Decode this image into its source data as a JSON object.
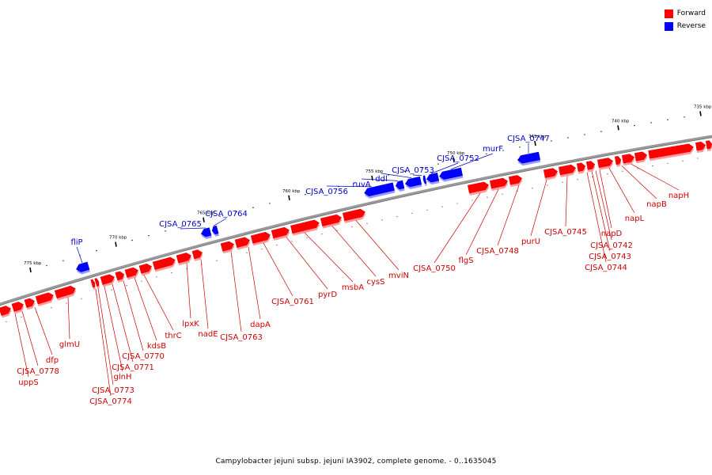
{
  "legend": {
    "forward": {
      "label": "Forward",
      "color": "#ff0000"
    },
    "reverse": {
      "label": "Reverse",
      "color": "#0000ff"
    }
  },
  "caption": "Campylobacter jejuni subsp. jejuni IA3902, complete genome. - 0..1635045",
  "colors": {
    "forward": "#ff0000",
    "reverse": "#0000ff",
    "forward_label": "#cc0000",
    "reverse_label": "#0000cc",
    "backbone": "#999999"
  },
  "ticks": [
    "775 kbp",
    "770 kbp",
    "765 kbp",
    "760 kbp",
    "755 kbp",
    "750 kbp",
    "745 kbp",
    "740 kbp",
    "735 kbp"
  ],
  "reverse_labels": [
    "fliP",
    "CJSA_0765",
    "CJSA_0764",
    "CJSA_0756",
    "ruvA",
    "ddl",
    "CJSA_0753",
    "CJSA_0752",
    "murF",
    "CJSA_0747"
  ],
  "forward_labels": [
    "uppS",
    "CJSA_0778",
    "dfp",
    "glmU",
    "CJSA_0774",
    "CJSA_0773",
    "glnH",
    "CJSA_0771",
    "CJSA_0770",
    "kdsB",
    "thrC",
    "lpxK",
    "nadE",
    "CJSA_0763",
    "dapA",
    "CJSA_0761",
    "pyrD",
    "msbA",
    "cysS",
    "mviN",
    "CJSA_0750",
    "flgS",
    "CJSA_0748",
    "purU",
    "CJSA_0745",
    "CJSA_0744",
    "CJSA_0743",
    "CJSA_0742",
    "napD",
    "napL",
    "napB",
    "napH"
  ]
}
